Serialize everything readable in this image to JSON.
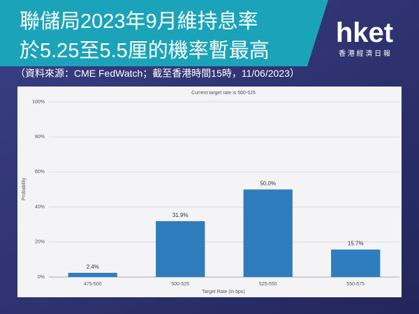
{
  "header": {
    "title": [
      "聯儲局2023年9月維持息率",
      "於5.25至5.5厘的機率暫最高"
    ],
    "subtitle": "（資料來源：CME FedWatch；截至香港時間15時，11/06/2023）"
  },
  "logo": {
    "brand": "hket",
    "tagline": "香 港 經 濟 日 報"
  },
  "chart_data": {
    "type": "bar",
    "title": "Current target rate is 500-525",
    "x_label": "Target Rate (in bps)",
    "y_label": "Probability",
    "categories": [
      "475-500",
      "500-525",
      "525-550",
      "550-575"
    ],
    "values": [
      2.4,
      31.9,
      50.0,
      15.7
    ],
    "value_labels": [
      "2.4%",
      "31.9%",
      "50.0%",
      "15.7%"
    ],
    "color": "#2f7dbd",
    "ylim": [
      0,
      100
    ],
    "yticks": [
      {
        "value": 0,
        "label": "0%"
      },
      {
        "value": 20,
        "label": "20%"
      },
      {
        "value": 40,
        "label": "40%"
      },
      {
        "value": 60,
        "label": "60%"
      },
      {
        "value": 80,
        "label": "80%"
      },
      {
        "value": 100,
        "label": "100%"
      }
    ],
    "grid": true
  }
}
